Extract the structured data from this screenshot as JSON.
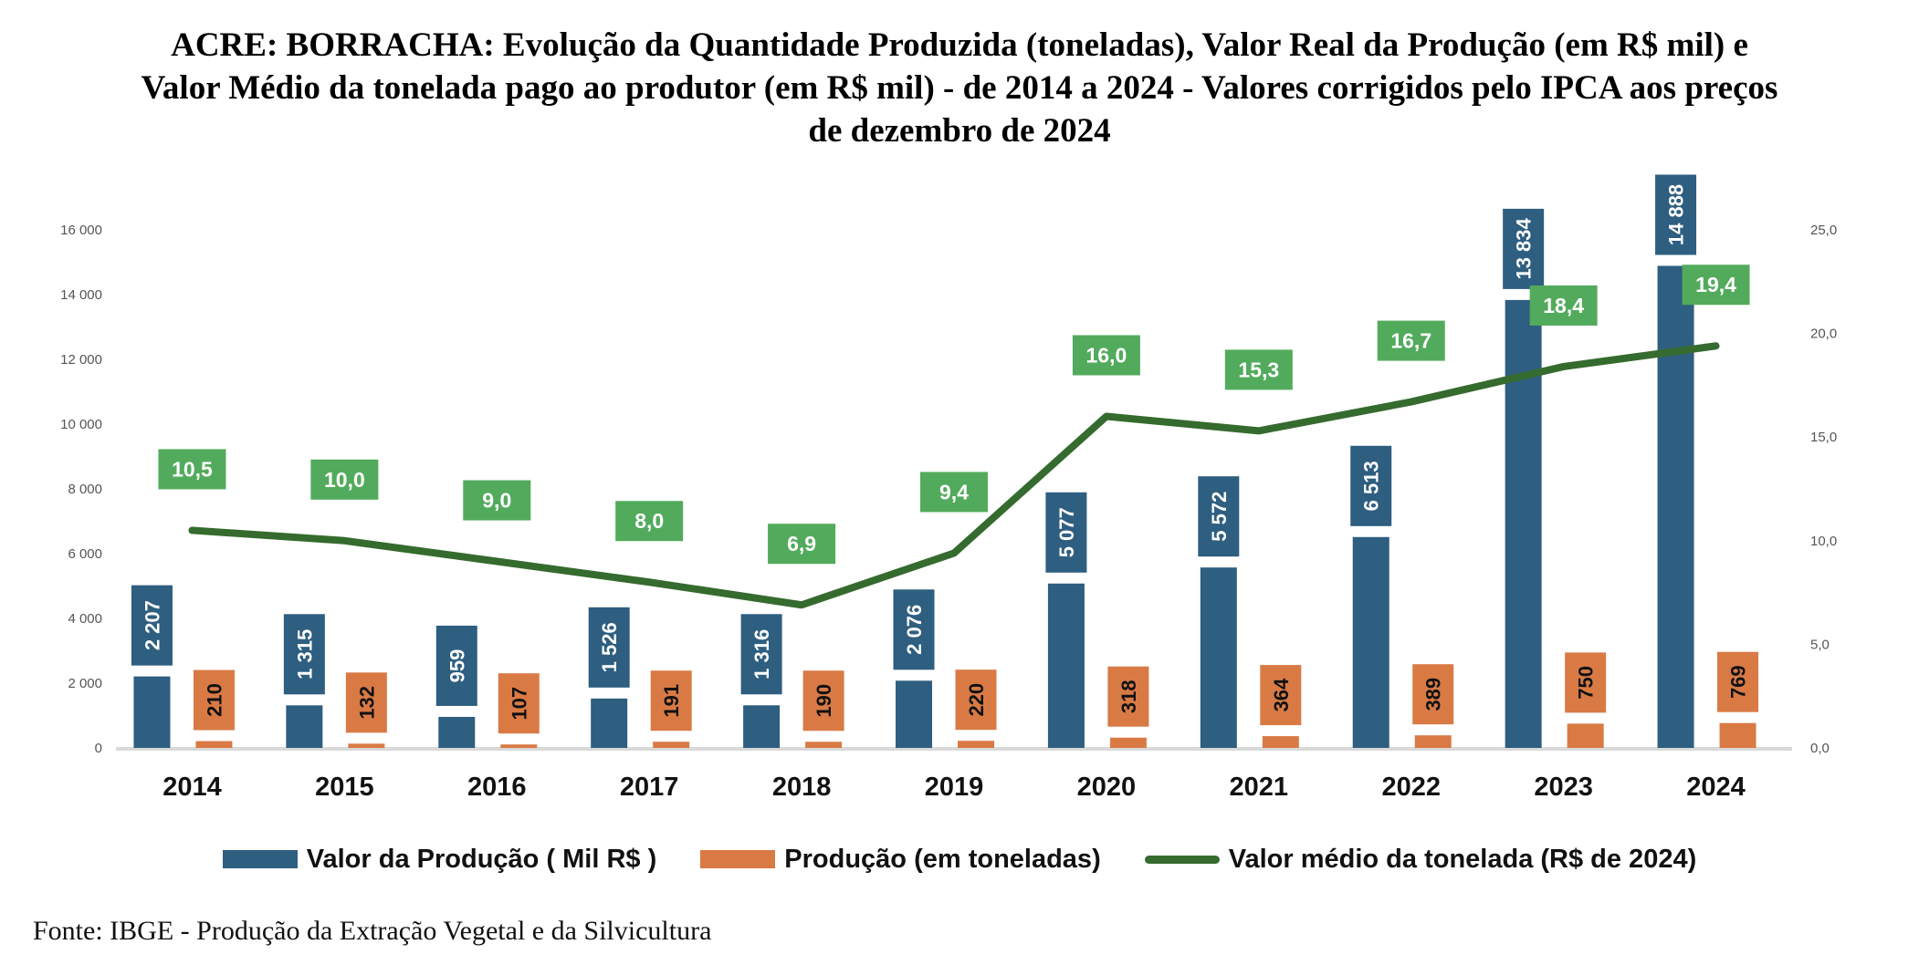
{
  "title_lines": [
    "ACRE: BORRACHA:  Evolução da Quantidade Produzida (toneladas), Valor Real da Produção (em R$ mil) e",
    "Valor Médio da tonelada pago ao produtor (em R$ mil) - de  2014 a 2024 - Valores corrigidos pelo IPCA aos preços",
    "de  dezembro de 2024"
  ],
  "source": "Fonte: IBGE - Produção da Extração Vegetal e da Silvicultura",
  "colors": {
    "valor_producao": "#2e5e80",
    "producao_toneladas": "#d97a45",
    "valor_medio": "#356b2e",
    "valor_medio_label_bg": "#52ab5c",
    "axis_text": "#555555",
    "baseline": "#d9d9d9"
  },
  "legend": [
    {
      "label": "Valor da Produção ( Mil R$ )",
      "series": "valor_producao",
      "kind": "bar"
    },
    {
      "label": "Produção (em toneladas)",
      "series": "producao_toneladas",
      "kind": "bar"
    },
    {
      "label": "Valor médio da tonelada (R$ de 2024)",
      "series": "valor_medio",
      "kind": "line"
    }
  ],
  "chart_data": {
    "type": "bar",
    "title": "ACRE: BORRACHA: Evolução da Quantidade Produzida (toneladas), Valor Real da Produção (em R$ mil) e Valor Médio da tonelada pago ao produtor (em R$ mil) - de 2014 a 2024 - Valores corrigidos pelo IPCA aos preços de dezembro de 2024",
    "xlabel": "",
    "ylabel": "",
    "categories": [
      "2014",
      "2015",
      "2016",
      "2017",
      "2018",
      "2019",
      "2020",
      "2021",
      "2022",
      "2023",
      "2024"
    ],
    "series": [
      {
        "name": "Valor da Produção ( Mil R$ )",
        "type": "bar",
        "axis": "left",
        "values": [
          2207,
          1315,
          959,
          1526,
          1316,
          2076,
          5077,
          5572,
          6513,
          13834,
          14888
        ],
        "labels": [
          "2 207",
          "1 315",
          "959",
          "1 526",
          "1 316",
          "2 076",
          "5 077",
          "5 572",
          "6 513",
          "13 834",
          "14 888"
        ]
      },
      {
        "name": "Produção (em toneladas)",
        "type": "bar",
        "axis": "left",
        "values": [
          210,
          132,
          107,
          191,
          190,
          220,
          318,
          364,
          389,
          750,
          769
        ],
        "labels": [
          "210",
          "132",
          "107",
          "191",
          "190",
          "220",
          "318",
          "364",
          "389",
          "750",
          "769"
        ]
      },
      {
        "name": "Valor médio da tonelada (R$ de 2024)",
        "type": "line",
        "axis": "right",
        "values": [
          10.5,
          10.0,
          9.0,
          8.0,
          6.9,
          9.4,
          16.0,
          15.3,
          16.7,
          18.4,
          19.4
        ],
        "labels": [
          "10,5",
          "10,0",
          "9,0",
          "8,0",
          "6,9",
          "9,4",
          "16,0",
          "15,3",
          "16,7",
          "18,4",
          "19,4"
        ]
      }
    ],
    "y_left": {
      "ylim": [
        0,
        16000
      ],
      "ticks": [
        0,
        2000,
        4000,
        6000,
        8000,
        10000,
        12000,
        14000,
        16000
      ],
      "tick_labels": [
        "0",
        "2 000",
        "4 000",
        "6 000",
        "8 000",
        "10 000",
        "12 000",
        "14 000",
        "16 000"
      ]
    },
    "y_right": {
      "ylim": [
        0,
        25
      ],
      "ticks": [
        0,
        5,
        10,
        15,
        20,
        25
      ],
      "tick_labels": [
        "0,0",
        "5,0",
        "10,0",
        "15,0",
        "20,0",
        "25,0"
      ]
    },
    "grid": false,
    "legend_position": "bottom"
  }
}
